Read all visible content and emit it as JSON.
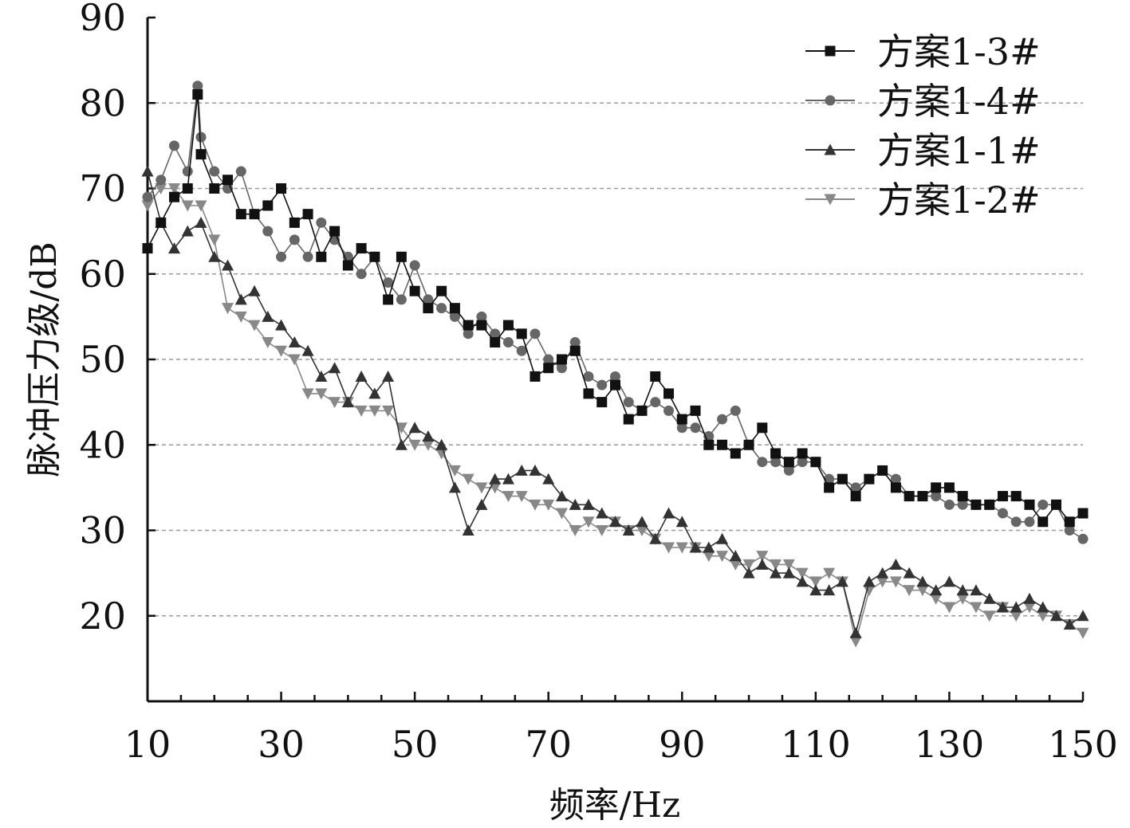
{
  "chart_data": {
    "type": "line",
    "title": "",
    "xlabel": "频率/Hz",
    "ylabel": "脉冲压力级/dB",
    "xlim": [
      10,
      150
    ],
    "ylim": [
      10,
      90
    ],
    "x_ticks": [
      10,
      30,
      50,
      70,
      90,
      110,
      130,
      150
    ],
    "y_ticks": [
      20,
      30,
      40,
      50,
      60,
      70,
      80,
      90
    ],
    "grid": "horizontal dashed at 20-80",
    "legend_position": "top-right",
    "series": [
      {
        "name": "方案1-3#",
        "marker": "square",
        "color": "#111111",
        "x": [
          10,
          12,
          14,
          16,
          17.5,
          18,
          20,
          22,
          24,
          26,
          28,
          30,
          32,
          34,
          36,
          38,
          40,
          42,
          44,
          46,
          48,
          50,
          52,
          54,
          56,
          58,
          60,
          62,
          64,
          66,
          68,
          70,
          72,
          74,
          76,
          78,
          80,
          82,
          84,
          86,
          88,
          90,
          92,
          94,
          96,
          98,
          100,
          102,
          104,
          106,
          108,
          110,
          112,
          114,
          116,
          118,
          120,
          122,
          124,
          126,
          128,
          130,
          132,
          134,
          136,
          138,
          140,
          142,
          144,
          146,
          148,
          150
        ],
        "values": [
          63,
          66,
          69,
          70,
          81,
          74,
          70,
          71,
          67,
          67,
          68,
          70,
          66,
          67,
          62,
          65,
          61,
          63,
          62,
          57,
          62,
          58,
          56,
          58,
          56,
          54,
          54,
          52,
          54,
          53,
          48,
          49,
          50,
          51,
          46,
          45,
          47,
          43,
          44,
          48,
          46,
          43,
          44,
          40,
          40,
          39,
          40,
          42,
          39,
          38,
          39,
          38,
          35,
          36,
          34,
          36,
          37,
          35,
          34,
          34,
          35,
          35,
          34,
          33,
          33,
          34,
          34,
          33,
          31,
          33,
          31,
          32
        ]
      },
      {
        "name": "方案1-4#",
        "marker": "circle",
        "color": "#666666",
        "x": [
          10,
          12,
          14,
          16,
          17.5,
          18,
          20,
          22,
          24,
          26,
          28,
          30,
          32,
          34,
          36,
          38,
          40,
          42,
          44,
          46,
          48,
          50,
          52,
          54,
          56,
          58,
          60,
          62,
          64,
          66,
          68,
          70,
          72,
          74,
          76,
          78,
          80,
          82,
          84,
          86,
          88,
          90,
          92,
          94,
          96,
          98,
          100,
          102,
          104,
          106,
          108,
          110,
          112,
          114,
          116,
          118,
          120,
          122,
          124,
          126,
          128,
          130,
          132,
          134,
          136,
          138,
          140,
          142,
          144,
          146,
          148,
          150
        ],
        "values": [
          69,
          71,
          75,
          72,
          82,
          76,
          72,
          70,
          72,
          67,
          65,
          62,
          64,
          62,
          66,
          64,
          62,
          60,
          62,
          59,
          57,
          61,
          57,
          56,
          55,
          53,
          55,
          53,
          52,
          51,
          53,
          50,
          49,
          52,
          48,
          47,
          48,
          45,
          44,
          45,
          44,
          42,
          42,
          41,
          43,
          44,
          40,
          38,
          38,
          37,
          38,
          38,
          36,
          36,
          35,
          36,
          37,
          36,
          34,
          34,
          34,
          33,
          33,
          33,
          33,
          32,
          31,
          31,
          33,
          33,
          30,
          29
        ]
      },
      {
        "name": "方案1-1#",
        "marker": "triangle-up",
        "color": "#333333",
        "x": [
          10,
          12,
          14,
          16,
          18,
          20,
          22,
          24,
          26,
          28,
          30,
          32,
          34,
          36,
          38,
          40,
          42,
          44,
          46,
          48,
          50,
          52,
          54,
          56,
          58,
          60,
          62,
          64,
          66,
          68,
          70,
          72,
          74,
          76,
          78,
          80,
          82,
          84,
          86,
          88,
          90,
          92,
          94,
          96,
          98,
          100,
          102,
          104,
          106,
          108,
          110,
          112,
          114,
          116,
          118,
          120,
          122,
          124,
          126,
          128,
          130,
          132,
          134,
          136,
          138,
          140,
          142,
          144,
          146,
          148,
          150
        ],
        "values": [
          72,
          66,
          63,
          65,
          66,
          62,
          61,
          57,
          58,
          55,
          54,
          52,
          51,
          48,
          49,
          45,
          48,
          46,
          48,
          40,
          42,
          41,
          40,
          35,
          30,
          33,
          36,
          36,
          37,
          37,
          36,
          34,
          33,
          33,
          32,
          31,
          30,
          31,
          29,
          32,
          31,
          28,
          28,
          29,
          27,
          25,
          26,
          25,
          25,
          24,
          23,
          23,
          24,
          18,
          24,
          25,
          26,
          25,
          24,
          23,
          24,
          23,
          23,
          22,
          21,
          21,
          22,
          21,
          20,
          19,
          20
        ]
      },
      {
        "name": "方案1-2#",
        "marker": "triangle-down",
        "color": "#888888",
        "x": [
          10,
          12,
          14,
          16,
          18,
          20,
          22,
          24,
          26,
          28,
          30,
          32,
          34,
          36,
          38,
          40,
          42,
          44,
          46,
          48,
          50,
          52,
          54,
          56,
          58,
          60,
          62,
          64,
          66,
          68,
          70,
          72,
          74,
          76,
          78,
          80,
          82,
          84,
          86,
          88,
          90,
          92,
          94,
          96,
          98,
          100,
          102,
          104,
          106,
          108,
          110,
          112,
          114,
          116,
          118,
          120,
          122,
          124,
          126,
          128,
          130,
          132,
          134,
          136,
          138,
          140,
          142,
          144,
          146,
          148,
          150
        ],
        "values": [
          68,
          70,
          70,
          68,
          68,
          64,
          56,
          55,
          54,
          52,
          51,
          50,
          46,
          46,
          45,
          45,
          44,
          44,
          44,
          42,
          40,
          40,
          39,
          37,
          36,
          35,
          35,
          34,
          34,
          33,
          33,
          32,
          30,
          31,
          30,
          31,
          30,
          30,
          29,
          28,
          28,
          28,
          27,
          27,
          26,
          26,
          27,
          26,
          26,
          25,
          24,
          25,
          24,
          17,
          23,
          24,
          24,
          23,
          23,
          22,
          21,
          22,
          21,
          20,
          21,
          20,
          21,
          20,
          20,
          19,
          18
        ]
      }
    ]
  }
}
